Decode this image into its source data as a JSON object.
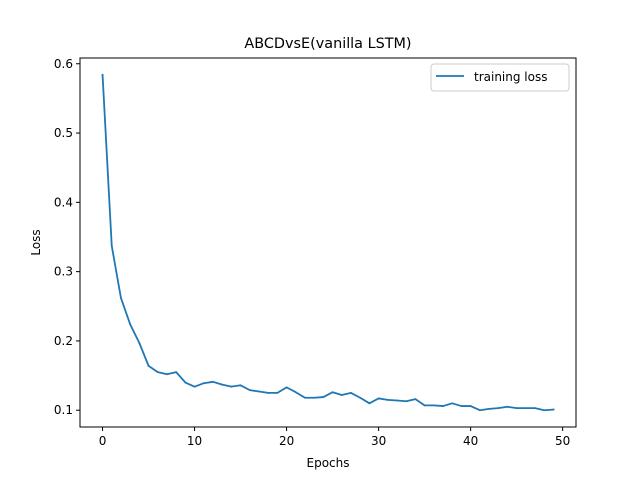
{
  "chart_data": {
    "type": "line",
    "title": "ABCDvsE(vanilla LSTM)",
    "xlabel": "Epochs",
    "ylabel": "Loss",
    "xlim": [
      -2.45,
      51.45
    ],
    "ylim": [
      0.0758,
      0.6083
    ],
    "xticks": [
      0,
      10,
      20,
      30,
      40,
      50
    ],
    "xtick_labels": [
      "0",
      "10",
      "20",
      "30",
      "40",
      "50"
    ],
    "yticks": [
      0.1,
      0.2,
      0.3,
      0.4,
      0.5,
      0.6
    ],
    "ytick_labels": [
      "0.1",
      "0.2",
      "0.3",
      "0.4",
      "0.5",
      "0.6"
    ],
    "grid": false,
    "legend_position": "upper right",
    "series": [
      {
        "name": "training loss",
        "color": "#1f77b4",
        "x": [
          0,
          1,
          2,
          3,
          4,
          5,
          6,
          7,
          8,
          9,
          10,
          11,
          12,
          13,
          14,
          15,
          16,
          17,
          18,
          19,
          20,
          21,
          22,
          23,
          24,
          25,
          26,
          27,
          28,
          29,
          30,
          31,
          32,
          33,
          34,
          35,
          36,
          37,
          38,
          39,
          40,
          41,
          42,
          43,
          44,
          45,
          46,
          47,
          48,
          49
        ],
        "y": [
          0.584,
          0.337,
          0.262,
          0.224,
          0.197,
          0.164,
          0.155,
          0.152,
          0.155,
          0.14,
          0.134,
          0.139,
          0.141,
          0.137,
          0.134,
          0.136,
          0.129,
          0.127,
          0.125,
          0.125,
          0.133,
          0.126,
          0.118,
          0.118,
          0.119,
          0.126,
          0.122,
          0.125,
          0.118,
          0.11,
          0.117,
          0.115,
          0.114,
          0.113,
          0.116,
          0.107,
          0.107,
          0.106,
          0.11,
          0.106,
          0.106,
          0.1,
          0.102,
          0.103,
          0.105,
          0.103,
          0.103,
          0.103,
          0.1,
          0.101
        ]
      }
    ]
  }
}
